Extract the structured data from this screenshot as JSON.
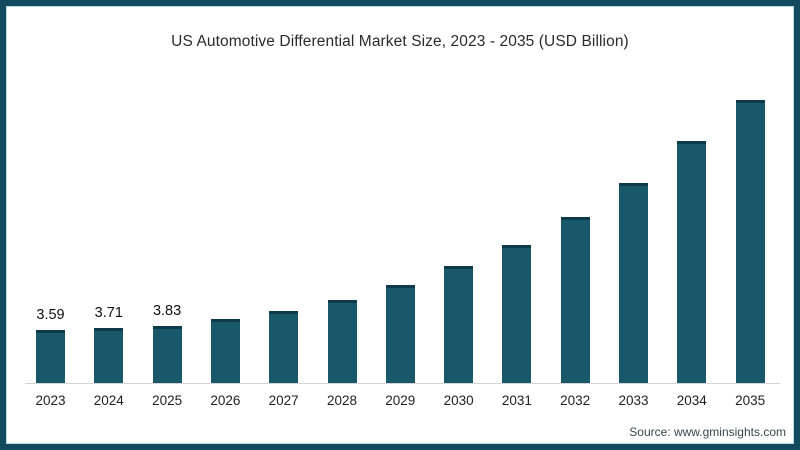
{
  "title": "US Automotive Differential Market Size, 2023 - 2035 (USD Billion)",
  "source": "Source: www.gminsights.com",
  "colors": {
    "bar_fill": "#19576b",
    "bar_top_cap": "#0d3b4b",
    "frame_border": "#134a60",
    "frame_inner_line": "#b5d9e8",
    "axis_line": "#d4d4d4",
    "title_text": "#2b2b2b",
    "label_text": "#111111",
    "source_text": "#37474f"
  },
  "chart_data": {
    "type": "bar",
    "title": "US Automotive Differential Market Size, 2023 - 2035 (USD Billion)",
    "categories": [
      "2023",
      "2024",
      "2025",
      "2026",
      "2027",
      "2028",
      "2029",
      "2030",
      "2031",
      "2032",
      "2033",
      "2034",
      "2035"
    ],
    "values": [
      3.59,
      3.71,
      3.83,
      4.33,
      4.87,
      5.64,
      6.62,
      7.91,
      9.33,
      11.22,
      13.48,
      16.33,
      19.11
    ],
    "bar_labels": [
      "3.59",
      "3.71",
      "3.83",
      "",
      "",
      "",
      "",
      "",
      "",
      "",
      "",
      "",
      ""
    ],
    "xlabel": "",
    "ylabel": "",
    "ylim": [
      0,
      20
    ],
    "grid": false,
    "legend": "none",
    "y_axis_visible": false,
    "x_axis_line": true,
    "notes": "only first three bars carry data labels; remaining values estimated from bar heights"
  }
}
